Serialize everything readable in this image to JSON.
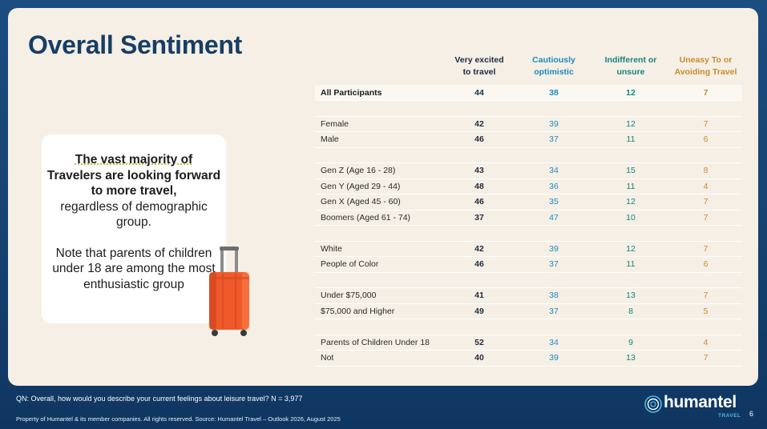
{
  "title": "Overall Sentiment",
  "callout": {
    "highlight_line1": "The vast majority of",
    "highlight_rest": "Travelers are looking forward to more travel,",
    "rest": "regardless of demographic group.",
    "note": "Note that parents of children under 18 are among the most enthusiastic group"
  },
  "table": {
    "headers": [
      {
        "line1": "Very excited",
        "line2": "to travel"
      },
      {
        "line1": "Cautiously",
        "line2": "optimistic"
      },
      {
        "line1": "Indifferent or",
        "line2": "unsure"
      },
      {
        "line1": "Uneasy To or",
        "line2": "Avoiding Travel"
      }
    ],
    "all_participants": {
      "label": "All Participants",
      "values": [
        "44",
        "38",
        "12",
        "7"
      ]
    },
    "groups": [
      [
        {
          "label": "Female",
          "values": [
            "42",
            "39",
            "12",
            "7"
          ]
        },
        {
          "label": "Male",
          "values": [
            "46",
            "37",
            "11",
            "6"
          ]
        }
      ],
      [
        {
          "label": "Gen Z (Age 16 - 28)",
          "values": [
            "43",
            "34",
            "15",
            "8"
          ]
        },
        {
          "label": "Gen Y (Aged 29 - 44)",
          "values": [
            "48",
            "36",
            "11",
            "4"
          ]
        },
        {
          "label": "Gen X (Aged 45 - 60)",
          "values": [
            "46",
            "35",
            "12",
            "7"
          ]
        },
        {
          "label": "Boomers (Aged 61 - 74)",
          "values": [
            "37",
            "47",
            "10",
            "7"
          ]
        }
      ],
      [
        {
          "label": "White",
          "values": [
            "42",
            "39",
            "12",
            "7"
          ]
        },
        {
          "label": "People of Color",
          "values": [
            "46",
            "37",
            "11",
            "6"
          ]
        }
      ],
      [
        {
          "label": "Under $75,000",
          "values": [
            "41",
            "38",
            "13",
            "7"
          ]
        },
        {
          "label": "$75,000 and Higher",
          "values": [
            "49",
            "37",
            "8",
            "5"
          ]
        }
      ],
      [
        {
          "label": "Parents of Children Under 18",
          "values": [
            "52",
            "34",
            "9",
            "4"
          ]
        },
        {
          "label": "Not",
          "values": [
            "40",
            "39",
            "13",
            "7"
          ]
        }
      ]
    ]
  },
  "footnote": "QN: Overall, how would you describe your current feelings about leisure travel? N = 3,977",
  "footer": "Property of Humantel & its member companies.  All rights reserved. Source: Humantel Travel – Outlook 2026, August 2025",
  "logo": {
    "word": "humantel",
    "sub": "TRAVEL"
  },
  "page_number": "6",
  "colors": {
    "navy": "#163e66",
    "excited": "#1e2b40",
    "cautious": "#1a8cc1",
    "indifferent": "#14867e",
    "uneasy": "#c98a2f",
    "suitcase": "#f05a2a"
  }
}
